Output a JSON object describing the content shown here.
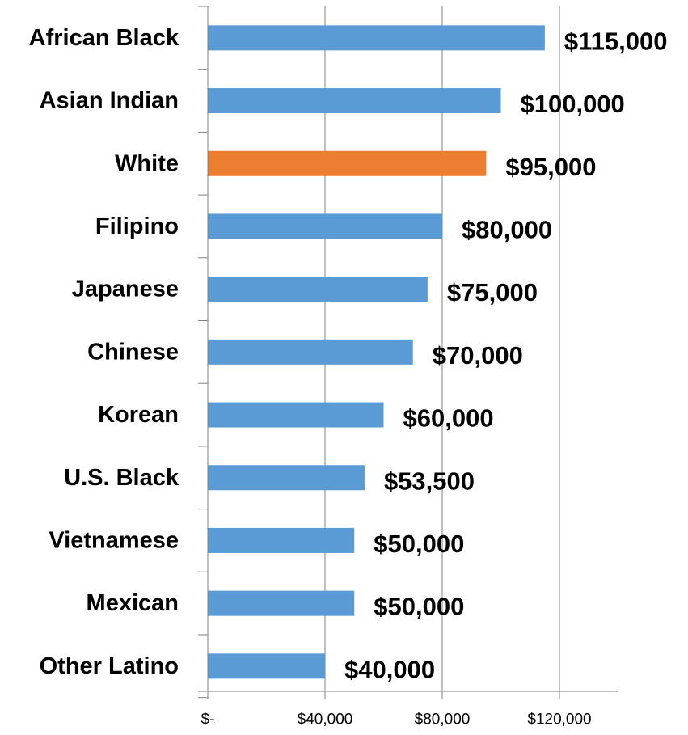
{
  "chart_data": {
    "type": "bar",
    "orientation": "horizontal",
    "title": "",
    "xlabel": "",
    "ylabel": "",
    "categories": [
      "African Black",
      "Asian Indian",
      "White",
      "Filipino",
      "Japanese",
      "Chinese",
      "Korean",
      "U.S. Black",
      "Vietnamese",
      "Mexican",
      "Other Latino"
    ],
    "values": [
      115000,
      100000,
      95000,
      80000,
      75000,
      70000,
      60000,
      53500,
      50000,
      50000,
      40000
    ],
    "data_labels": [
      "$115,000",
      "$100,000",
      "$95,000",
      "$80,000",
      "$75,000",
      "$70,000",
      "$60,000",
      "$53,500",
      "$50,000",
      "$50,000",
      "$40,000"
    ],
    "highlight_category": "White",
    "xlim": [
      0,
      140000
    ],
    "x_ticks": [
      0,
      40000,
      80000,
      120000
    ],
    "x_tick_labels": [
      "$-",
      "$40,000",
      "$80,000",
      "$120,000"
    ],
    "grid": "vertical",
    "legend": "none",
    "colors": {
      "bar": "#5B9BD5",
      "highlight": "#ED7D31",
      "grid": "#808080",
      "axis": "#808080",
      "text": "#000000"
    }
  }
}
